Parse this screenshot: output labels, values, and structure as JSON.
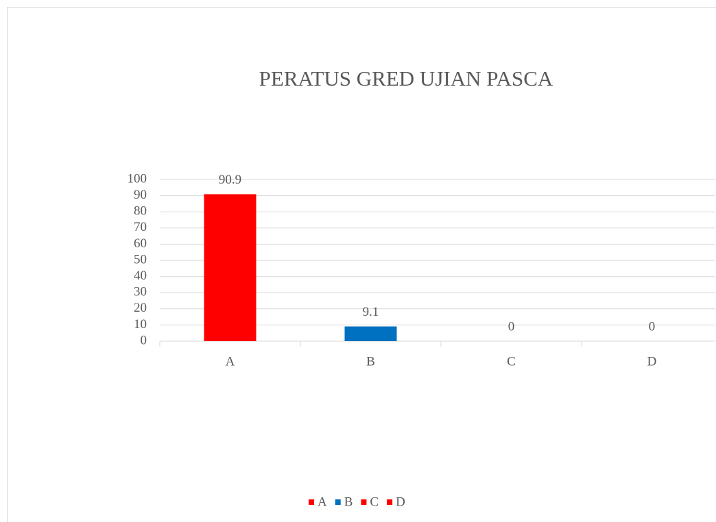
{
  "chart_data": {
    "type": "bar",
    "title": "PERATUS GRED UJIAN PASCA",
    "categories": [
      "A",
      "B",
      "C",
      "D"
    ],
    "values": [
      90.9,
      9.1,
      0,
      0
    ],
    "colors": [
      "#ff0000",
      "#0070c0",
      "#ff0000",
      "#ff0000"
    ],
    "ylim": [
      0,
      100
    ],
    "yticks": [
      0,
      10,
      20,
      30,
      40,
      50,
      60,
      70,
      80,
      90,
      100
    ],
    "grid": true,
    "legend": "bottom"
  }
}
